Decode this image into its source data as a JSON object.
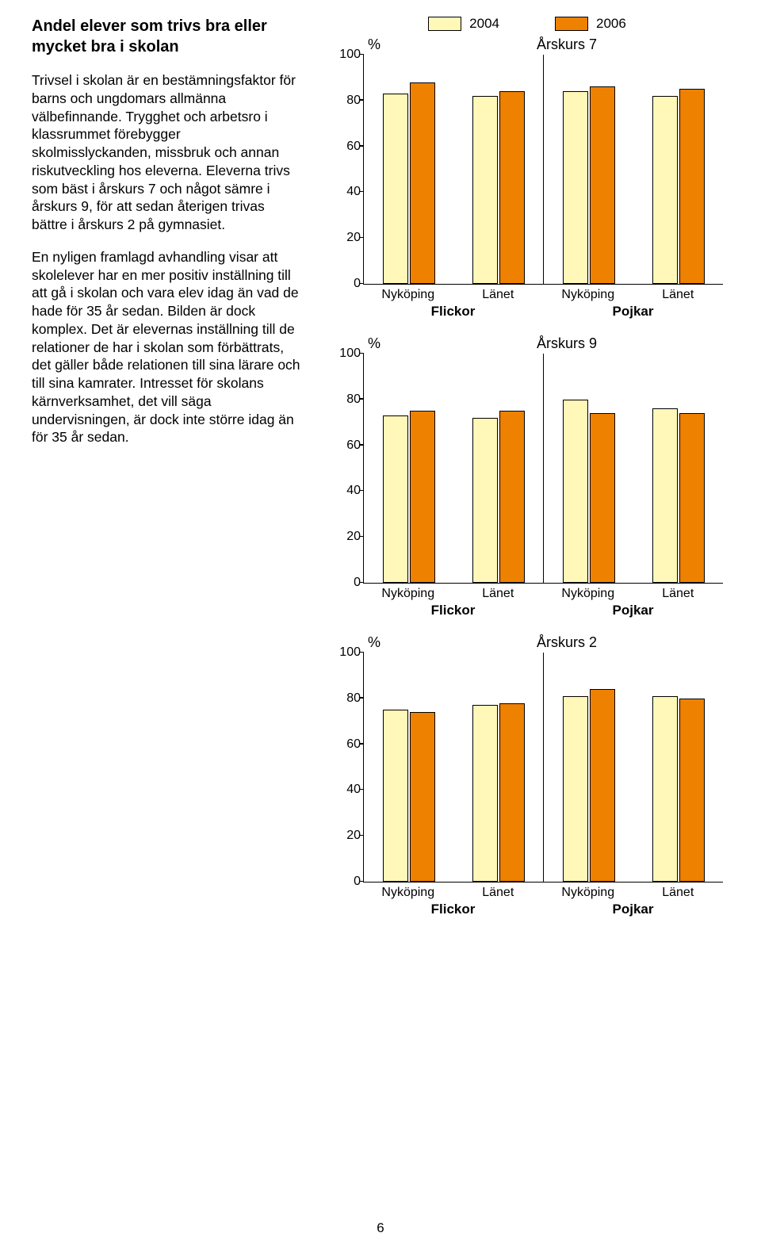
{
  "heading": "Andel elever som trivs bra eller mycket bra i skolan",
  "para1": "Trivsel i skolan är en bestämningsfaktor för barns och ungdomars allmänna välbefinnande. Trygghet och arbetsro i klassrummet förebygger skolmisslyckanden, missbruk och annan riskutveckling hos eleverna. Eleverna trivs som bäst i årskurs 7 och något sämre i årskurs 9, för att sedan återigen trivas bättre i årskurs 2 på gymnasiet.",
  "para2": "En nyligen framlagd avhandling visar att skolelever har en mer positiv inställning till att gå i skolan och vara elev idag än vad de hade för 35 år sedan. Bilden är dock komplex. Det är elevernas inställning till de relationer de har i skolan som förbättrats, det gäller både relationen till sina lärare och till sina kamrater. Intresset för skolans kärnverksamhet, det vill säga undervisningen, är dock inte större idag än för 35 år sedan.",
  "legend": {
    "a": "2004",
    "b": "2006"
  },
  "colors": {
    "bar_a": "#fff8b8",
    "bar_b": "#ee8100",
    "border": "#000000"
  },
  "percent_symbol": "%",
  "yticks": [
    0,
    20,
    40,
    60,
    80,
    100
  ],
  "charts": [
    {
      "title": "Årskurs 7",
      "groups": [
        {
          "x": "Nyköping",
          "a": 83,
          "b": 88
        },
        {
          "x": "Länet",
          "a": 82,
          "b": 84
        },
        {
          "x": "Nyköping",
          "a": 84,
          "b": 86
        },
        {
          "x": "Länet",
          "a": 82,
          "b": 85
        }
      ],
      "sub": [
        "Flickor",
        "Pojkar"
      ]
    },
    {
      "title": "Årskurs 9",
      "groups": [
        {
          "x": "Nyköping",
          "a": 73,
          "b": 75
        },
        {
          "x": "Länet",
          "a": 72,
          "b": 75
        },
        {
          "x": "Nyköping",
          "a": 80,
          "b": 74
        },
        {
          "x": "Länet",
          "a": 76,
          "b": 74
        }
      ],
      "sub": [
        "Flickor",
        "Pojkar"
      ]
    },
    {
      "title": "Årskurs 2",
      "groups": [
        {
          "x": "Nyköping",
          "a": 75,
          "b": 74
        },
        {
          "x": "Länet",
          "a": 77,
          "b": 78
        },
        {
          "x": "Nyköping",
          "a": 81,
          "b": 84
        },
        {
          "x": "Länet",
          "a": 81,
          "b": 80
        }
      ],
      "sub": [
        "Flickor",
        "Pojkar"
      ]
    }
  ],
  "page_number": "6"
}
